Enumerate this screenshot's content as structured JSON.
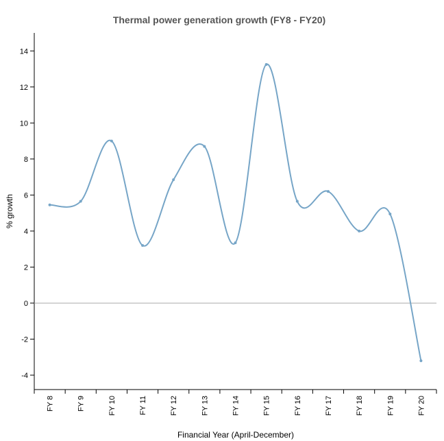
{
  "chart_data": {
    "type": "line",
    "title": "Thermal power generation growth (FY8 - FY20)",
    "xlabel": "Financial Year (April-December)",
    "ylabel": "% growth",
    "categories": [
      "FY 8",
      "FY 9",
      "FY 10",
      "FY 11",
      "FY 12",
      "FY 13",
      "FY 14",
      "FY 15",
      "FY 16",
      "FY 17",
      "FY 18",
      "FY 19",
      "FY 20"
    ],
    "values": [
      5.45,
      5.65,
      9.0,
      3.2,
      6.85,
      8.7,
      3.35,
      13.25,
      5.65,
      6.2,
      4.0,
      4.95,
      -3.2
    ],
    "ylim": [
      -4.8,
      15
    ],
    "yticks": [
      -4,
      -2,
      0,
      2,
      4,
      6,
      8,
      10,
      12,
      14
    ],
    "grid": false,
    "zero_line": true,
    "color": "#76a5c7",
    "curve": "smooth"
  }
}
